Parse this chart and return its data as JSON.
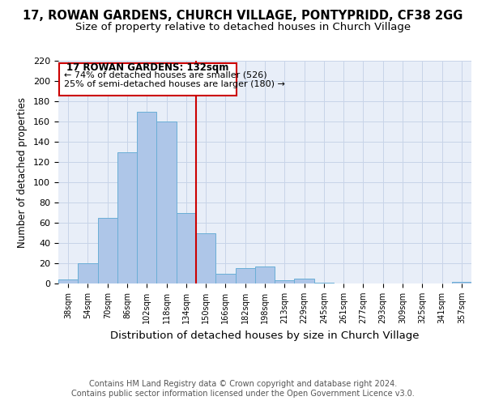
{
  "title": "17, ROWAN GARDENS, CHURCH VILLAGE, PONTYPRIDD, CF38 2GG",
  "subtitle": "Size of property relative to detached houses in Church Village",
  "xlabel": "Distribution of detached houses by size in Church Village",
  "ylabel": "Number of detached properties",
  "bin_labels": [
    "38sqm",
    "54sqm",
    "70sqm",
    "86sqm",
    "102sqm",
    "118sqm",
    "134sqm",
    "150sqm",
    "166sqm",
    "182sqm",
    "198sqm",
    "213sqm",
    "229sqm",
    "245sqm",
    "261sqm",
    "277sqm",
    "293sqm",
    "309sqm",
    "325sqm",
    "341sqm",
    "357sqm"
  ],
  "bar_heights": [
    4,
    20,
    65,
    130,
    170,
    160,
    70,
    50,
    10,
    15,
    17,
    3,
    5,
    1,
    0,
    0,
    0,
    0,
    0,
    0,
    2
  ],
  "bar_color": "#aec6e8",
  "bar_edge_color": "#6aaed6",
  "vline_color": "#cc0000",
  "ylim": [
    0,
    220
  ],
  "yticks": [
    0,
    20,
    40,
    60,
    80,
    100,
    120,
    140,
    160,
    180,
    200,
    220
  ],
  "annotation_title": "17 ROWAN GARDENS: 132sqm",
  "annotation_line1": "← 74% of detached houses are smaller (526)",
  "annotation_line2": "25% of semi-detached houses are larger (180) →",
  "annotation_box_color": "#ffffff",
  "annotation_border_color": "#cc0000",
  "footer1": "Contains HM Land Registry data © Crown copyright and database right 2024.",
  "footer2": "Contains public sector information licensed under the Open Government Licence v3.0.",
  "title_fontsize": 10.5,
  "subtitle_fontsize": 9.5,
  "xlabel_fontsize": 9.5,
  "ylabel_fontsize": 8.5,
  "footer_fontsize": 7,
  "background_color": "#ffffff",
  "grid_color": "#c8d4e8",
  "axes_bg_color": "#e8eef8"
}
